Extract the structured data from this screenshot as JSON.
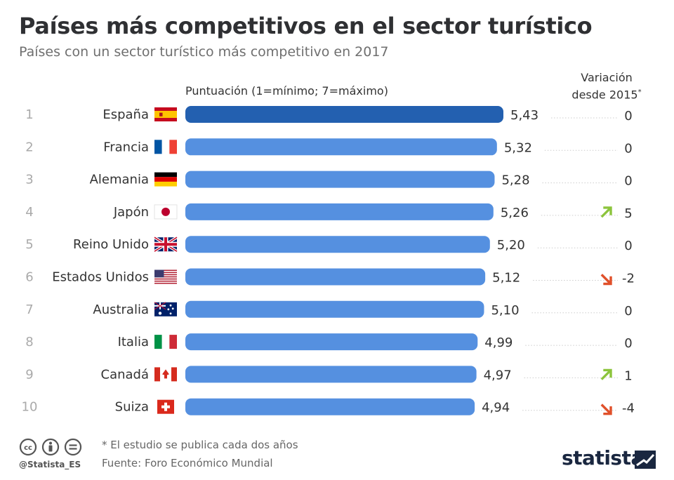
{
  "title": "Países más competitivos en el sector turístico",
  "subtitle": "Países con un sector turístico más competitivo en 2017",
  "axis_label": "Puntuación (1=mínimo; 7=máximo)",
  "variation_header_line1": "Variación",
  "variation_header_line2": "desde 2015",
  "variation_header_mark": "*",
  "footnote": "* El estudio se publica cada dos años",
  "source": "Fuente: Foro Económico Mundial",
  "handle": "@Statista_ES",
  "brand": "statista",
  "colors": {
    "highlight_bar": "#2360b0",
    "bar": "#5590e0",
    "up_arrow": "#8cc43c",
    "down_arrow": "#e0502a",
    "rank_text": "#aaaaaa"
  },
  "chart_data": {
    "type": "bar",
    "orientation": "horizontal",
    "xlim": [
      0,
      5.43
    ],
    "categories": [
      "España",
      "Francia",
      "Alemania",
      "Japón",
      "Reino Unido",
      "Estados Unidos",
      "Australia",
      "Italia",
      "Canadá",
      "Suiza"
    ],
    "ranks": [
      "1",
      "2",
      "3",
      "4",
      "5",
      "6",
      "7",
      "8",
      "9",
      "10"
    ],
    "values": [
      5.43,
      5.32,
      5.28,
      5.26,
      5.2,
      5.12,
      5.1,
      4.99,
      4.97,
      4.94
    ],
    "value_labels": [
      "5,43",
      "5,32",
      "5,28",
      "5,26",
      "5,20",
      "5,12",
      "5,10",
      "4,99",
      "4,97",
      "4,94"
    ],
    "variation": [
      "0",
      "0",
      "0",
      "5",
      "0",
      "-2",
      "0",
      "0",
      "1",
      "-4"
    ],
    "variation_direction": [
      "none",
      "none",
      "none",
      "up",
      "none",
      "down",
      "none",
      "none",
      "up",
      "down"
    ],
    "flags": [
      "flag-spain",
      "flag-france",
      "flag-germany",
      "flag-japan",
      "flag-uk",
      "flag-usa",
      "flag-australia",
      "flag-italy",
      "flag-canada",
      "flag-switzerland"
    ],
    "highlight_index": 0
  }
}
